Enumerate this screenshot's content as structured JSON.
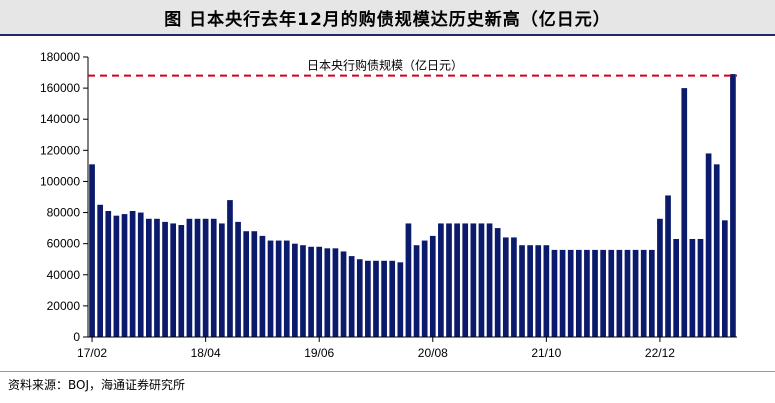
{
  "title": "图 日本央行去年12月的购债规模达历史新高（亿日元）",
  "source": "资料来源：BOJ，海通证券研究所",
  "chart_data": {
    "type": "bar",
    "annotation": "日本央行购债规模（亿日元）",
    "reference_line": 168000,
    "ylim": [
      0,
      180000
    ],
    "yticks": [
      0,
      20000,
      40000,
      60000,
      80000,
      100000,
      120000,
      140000,
      160000,
      180000
    ],
    "xtick_labels": [
      {
        "index": 0,
        "label": "17/02"
      },
      {
        "index": 14,
        "label": "18/04"
      },
      {
        "index": 28,
        "label": "19/06"
      },
      {
        "index": 42,
        "label": "20/08"
      },
      {
        "index": 56,
        "label": "21/10"
      },
      {
        "index": 70,
        "label": "22/12"
      }
    ],
    "values": [
      111000,
      85000,
      81000,
      78000,
      79000,
      81000,
      80000,
      76000,
      76000,
      74000,
      73000,
      72000,
      76000,
      76000,
      76000,
      76000,
      73000,
      88000,
      74000,
      68000,
      68000,
      65000,
      62000,
      62000,
      62000,
      60000,
      59000,
      58000,
      58000,
      57000,
      57000,
      55000,
      52000,
      50000,
      49000,
      49000,
      49000,
      49000,
      48000,
      73000,
      59000,
      62000,
      65000,
      73000,
      73000,
      73000,
      73000,
      73000,
      73000,
      73000,
      70000,
      64000,
      64000,
      59000,
      59000,
      59000,
      59000,
      56000,
      56000,
      56000,
      56000,
      56000,
      56000,
      56000,
      56000,
      56000,
      56000,
      56000,
      56000,
      56000,
      76000,
      91000,
      63000,
      160000,
      63000,
      63000,
      118000,
      111000,
      75000,
      169000
    ],
    "colors": {
      "bar": "#0b1a6b",
      "reference_line": "#d0021b",
      "axis": "#000000"
    }
  }
}
